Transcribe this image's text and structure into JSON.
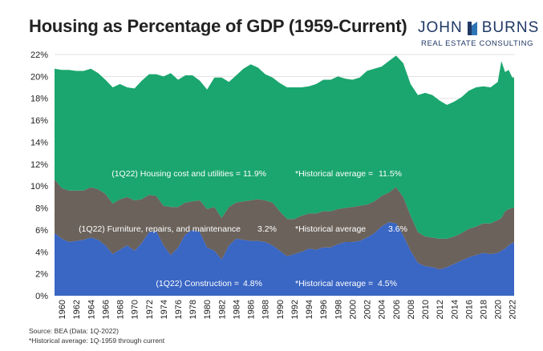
{
  "header": {
    "title": "Housing as Percentage of GDP (1959-Current)",
    "logo_word_left": "JOHN",
    "logo_word_right": "BURNS",
    "logo_subtitle": "REAL ESTATE CONSULTING",
    "logo_color": "#1f3864"
  },
  "footer": {
    "source": "Source: BEA (Data: 1Q-2022)",
    "note": "*Historical average: 1Q-1959 through current"
  },
  "chart_data": {
    "type": "area",
    "stacked": true,
    "title": "Housing as Percentage of GDP (1959-Current)",
    "xlabel": "",
    "ylabel": "",
    "ylim": [
      0,
      22
    ],
    "yticks": [
      0,
      2,
      4,
      6,
      8,
      10,
      12,
      14,
      16,
      18,
      20,
      22
    ],
    "ytick_labels": [
      "0%",
      "2%",
      "4%",
      "6%",
      "8%",
      "10%",
      "12%",
      "14%",
      "16%",
      "18%",
      "20%",
      "22%"
    ],
    "xlim": [
      1959,
      2022.25
    ],
    "xtick_labels": [
      "1960",
      "1962",
      "1964",
      "1966",
      "1968",
      "1970",
      "1972",
      "1974",
      "1976",
      "1978",
      "1980",
      "1982",
      "1984",
      "1986",
      "1988",
      "1990",
      "1992",
      "1994",
      "1996",
      "1998",
      "2000",
      "2002",
      "2004",
      "2006",
      "2008",
      "2010",
      "2012",
      "2014",
      "2016",
      "2018",
      "2020",
      "2022"
    ],
    "x": [
      1959,
      1960,
      1961,
      1962,
      1963,
      1964,
      1965,
      1966,
      1967,
      1968,
      1969,
      1970,
      1971,
      1972,
      1973,
      1974,
      1975,
      1976,
      1977,
      1978,
      1979,
      1980,
      1981,
      1982,
      1983,
      1984,
      1985,
      1986,
      1987,
      1988,
      1989,
      1990,
      1991,
      1992,
      1993,
      1994,
      1995,
      1996,
      1997,
      1998,
      1999,
      2000,
      2001,
      2002,
      2003,
      2004,
      2005,
      2006,
      2007,
      2008,
      2009,
      2010,
      2011,
      2012,
      2013,
      2014,
      2015,
      2016,
      2017,
      2018,
      2019,
      2020,
      2020.5,
      2021,
      2021.5,
      2022,
      2022.25
    ],
    "series": [
      {
        "name": "Construction",
        "color": "#3a66c4",
        "values": [
          5.7,
          5.2,
          4.9,
          5.0,
          5.1,
          5.3,
          5.1,
          4.6,
          3.8,
          4.2,
          4.6,
          4.1,
          4.8,
          5.8,
          5.9,
          4.6,
          3.7,
          4.4,
          5.6,
          6.0,
          5.8,
          4.4,
          4.1,
          3.3,
          4.6,
          5.2,
          5.1,
          5.0,
          5.0,
          4.9,
          4.6,
          4.1,
          3.6,
          3.8,
          4.0,
          4.3,
          4.2,
          4.4,
          4.4,
          4.7,
          4.9,
          4.9,
          5.0,
          5.3,
          5.7,
          6.3,
          6.7,
          6.6,
          5.5,
          4.1,
          3.0,
          2.7,
          2.6,
          2.4,
          2.6,
          2.9,
          3.2,
          3.5,
          3.7,
          3.9,
          3.8,
          3.9,
          4.1,
          4.3,
          4.6,
          4.8,
          4.8
        ]
      },
      {
        "name": "Furniture, repairs, and maintenance",
        "color": "#6b625b",
        "values": [
          4.9,
          4.6,
          4.7,
          4.6,
          4.5,
          4.6,
          4.6,
          4.7,
          4.6,
          4.6,
          4.4,
          4.6,
          4.0,
          3.4,
          3.2,
          3.6,
          4.4,
          3.7,
          2.9,
          2.6,
          2.9,
          3.5,
          4.0,
          3.8,
          3.5,
          3.3,
          3.5,
          3.7,
          3.8,
          3.8,
          3.9,
          3.6,
          3.4,
          3.2,
          3.3,
          3.2,
          3.3,
          3.3,
          3.3,
          3.2,
          3.1,
          3.2,
          3.2,
          3.0,
          2.9,
          2.8,
          2.7,
          3.3,
          3.5,
          3.2,
          2.8,
          2.7,
          2.7,
          2.8,
          2.6,
          2.5,
          2.5,
          2.6,
          2.6,
          2.7,
          2.8,
          3.0,
          3.0,
          3.4,
          3.3,
          3.2,
          3.2
        ]
      },
      {
        "name": "Housing cost and utilities",
        "color": "#1aa66e",
        "values": [
          10.1,
          10.8,
          11.0,
          10.9,
          10.9,
          10.8,
          10.6,
          10.4,
          10.6,
          10.5,
          10.0,
          10.2,
          10.8,
          11.0,
          11.1,
          11.8,
          12.2,
          11.6,
          11.6,
          11.5,
          10.9,
          10.9,
          11.8,
          12.8,
          11.4,
          11.6,
          12.1,
          12.4,
          12.0,
          11.5,
          11.4,
          11.7,
          12.0,
          12.0,
          11.7,
          11.6,
          11.8,
          12.0,
          12.0,
          12.1,
          11.8,
          11.6,
          11.7,
          12.2,
          12.1,
          11.8,
          12.0,
          12.0,
          12.2,
          12.0,
          12.5,
          13.1,
          13.0,
          12.6,
          12.2,
          12.3,
          12.4,
          12.6,
          12.7,
          12.5,
          12.4,
          12.6,
          14.3,
          12.7,
          12.7,
          11.9,
          11.9
        ]
      }
    ],
    "annotations": [
      {
        "label": "(1Q22) Housing cost and utilities =",
        "value": "11.9%",
        "avg_label": "*Historical average =",
        "avg_value": "11.5%"
      },
      {
        "label": "(1Q22) Furniture, repairs, and maintenance",
        "value": "3.2%",
        "avg_label": "*Historical average",
        "avg_value": "3.6%"
      },
      {
        "label": "(1Q22) Construction =",
        "value": "4.8%",
        "avg_label": "*Historical average =",
        "avg_value": "4.5%"
      }
    ]
  }
}
